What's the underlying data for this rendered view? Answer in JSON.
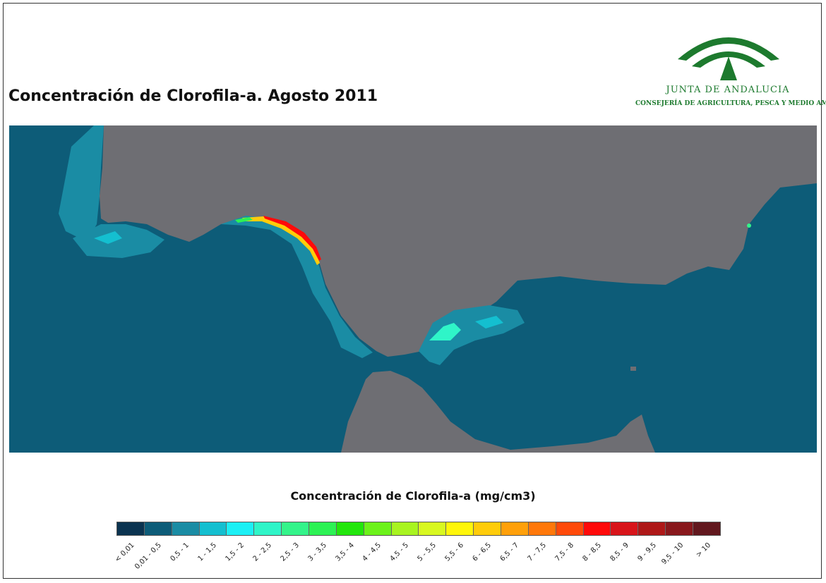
{
  "title": "Concentración de Clorofila-a. Agosto 2011",
  "logo": {
    "name": "JUNTA DE ANDALUCIA",
    "subtitle": "CONSEJERÍA DE AGRICULTURA, PESCA Y MEDIO AMBIENTE",
    "brand_color": "#1d7a2e"
  },
  "map": {
    "land_color": "#6e6e73",
    "sea_color": "#0d5c78"
  },
  "legend": {
    "title": "Concentración de Clorofila-a (mg/cm3)",
    "classes": [
      {
        "label": "< 0,01",
        "color": "#0b3350"
      },
      {
        "label": "0,01 - 0,5",
        "color": "#0d5c78"
      },
      {
        "label": "0,5 - 1",
        "color": "#1a8ca4"
      },
      {
        "label": "1 - 1,5",
        "color": "#14bfd0"
      },
      {
        "label": "1,5 - 2",
        "color": "#1cf0f5"
      },
      {
        "label": "2 - 2,5",
        "color": "#2ff5c8"
      },
      {
        "label": "2,5 - 3",
        "color": "#33f48a"
      },
      {
        "label": "3 - 3,5",
        "color": "#2cf254"
      },
      {
        "label": "3,5 - 4",
        "color": "#22e60c"
      },
      {
        "label": "4 - 4,5",
        "color": "#6cf21a"
      },
      {
        "label": "4,5 - 5",
        "color": "#a8f420"
      },
      {
        "label": "5 - 5,5",
        "color": "#d8f820"
      },
      {
        "label": "5,5 - 6",
        "color": "#fff60a"
      },
      {
        "label": "6 - 6,5",
        "color": "#ffcc0a"
      },
      {
        "label": "6,5 - 7",
        "color": "#ffa00a"
      },
      {
        "label": "7 - 7,5",
        "color": "#ff780a"
      },
      {
        "label": "7,5 - 8",
        "color": "#ff4a0a"
      },
      {
        "label": "8 - 8,5",
        "color": "#ff0a0a"
      },
      {
        "label": "8,5 - 9",
        "color": "#d8141a"
      },
      {
        "label": "9 - 9,5",
        "color": "#ae1818"
      },
      {
        "label": "9,5 - 10",
        "color": "#88181c"
      },
      {
        "label": "> 10",
        "color": "#62181e"
      }
    ]
  }
}
